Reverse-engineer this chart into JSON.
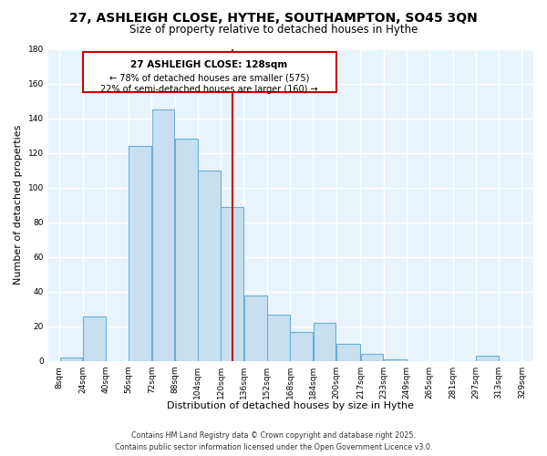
{
  "title": "27, ASHLEIGH CLOSE, HYTHE, SOUTHAMPTON, SO45 3QN",
  "subtitle": "Size of property relative to detached houses in Hythe",
  "xlabel": "Distribution of detached houses by size in Hythe",
  "ylabel": "Number of detached properties",
  "bar_color": "#c8dff0",
  "bar_edge_color": "#6baed6",
  "background_color": "#e8f4fc",
  "grid_color": "#d0e4f0",
  "annotation_box_edge": "#cc0000",
  "vline_color": "#cc0000",
  "vline_x": 128,
  "annotation_title": "27 ASHLEIGH CLOSE: 128sqm",
  "annotation_line1": "← 78% of detached houses are smaller (575)",
  "annotation_line2": "22% of semi-detached houses are larger (160) →",
  "bin_edges": [
    8,
    24,
    40,
    56,
    72,
    88,
    104,
    120,
    136,
    152,
    168,
    184,
    200,
    217,
    233,
    249,
    265,
    281,
    297,
    313,
    329
  ],
  "bin_counts": [
    2,
    26,
    0,
    124,
    145,
    128,
    110,
    89,
    38,
    27,
    17,
    22,
    10,
    4,
    1,
    0,
    0,
    0,
    3,
    0
  ],
  "tick_labels": [
    "8sqm",
    "24sqm",
    "40sqm",
    "56sqm",
    "72sqm",
    "88sqm",
    "104sqm",
    "120sqm",
    "136sqm",
    "152sqm",
    "168sqm",
    "184sqm",
    "200sqm",
    "217sqm",
    "233sqm",
    "249sqm",
    "265sqm",
    "281sqm",
    "297sqm",
    "313sqm",
    "329sqm"
  ],
  "ylim": [
    0,
    180
  ],
  "yticks": [
    0,
    20,
    40,
    60,
    80,
    100,
    120,
    140,
    160,
    180
  ],
  "footer_line1": "Contains HM Land Registry data © Crown copyright and database right 2025.",
  "footer_line2": "Contains public sector information licensed under the Open Government Licence v3.0.",
  "title_fontsize": 10,
  "subtitle_fontsize": 8.5,
  "axis_label_fontsize": 8,
  "tick_fontsize": 6.5,
  "annotation_fontsize": 7.5,
  "footer_fontsize": 5.8
}
